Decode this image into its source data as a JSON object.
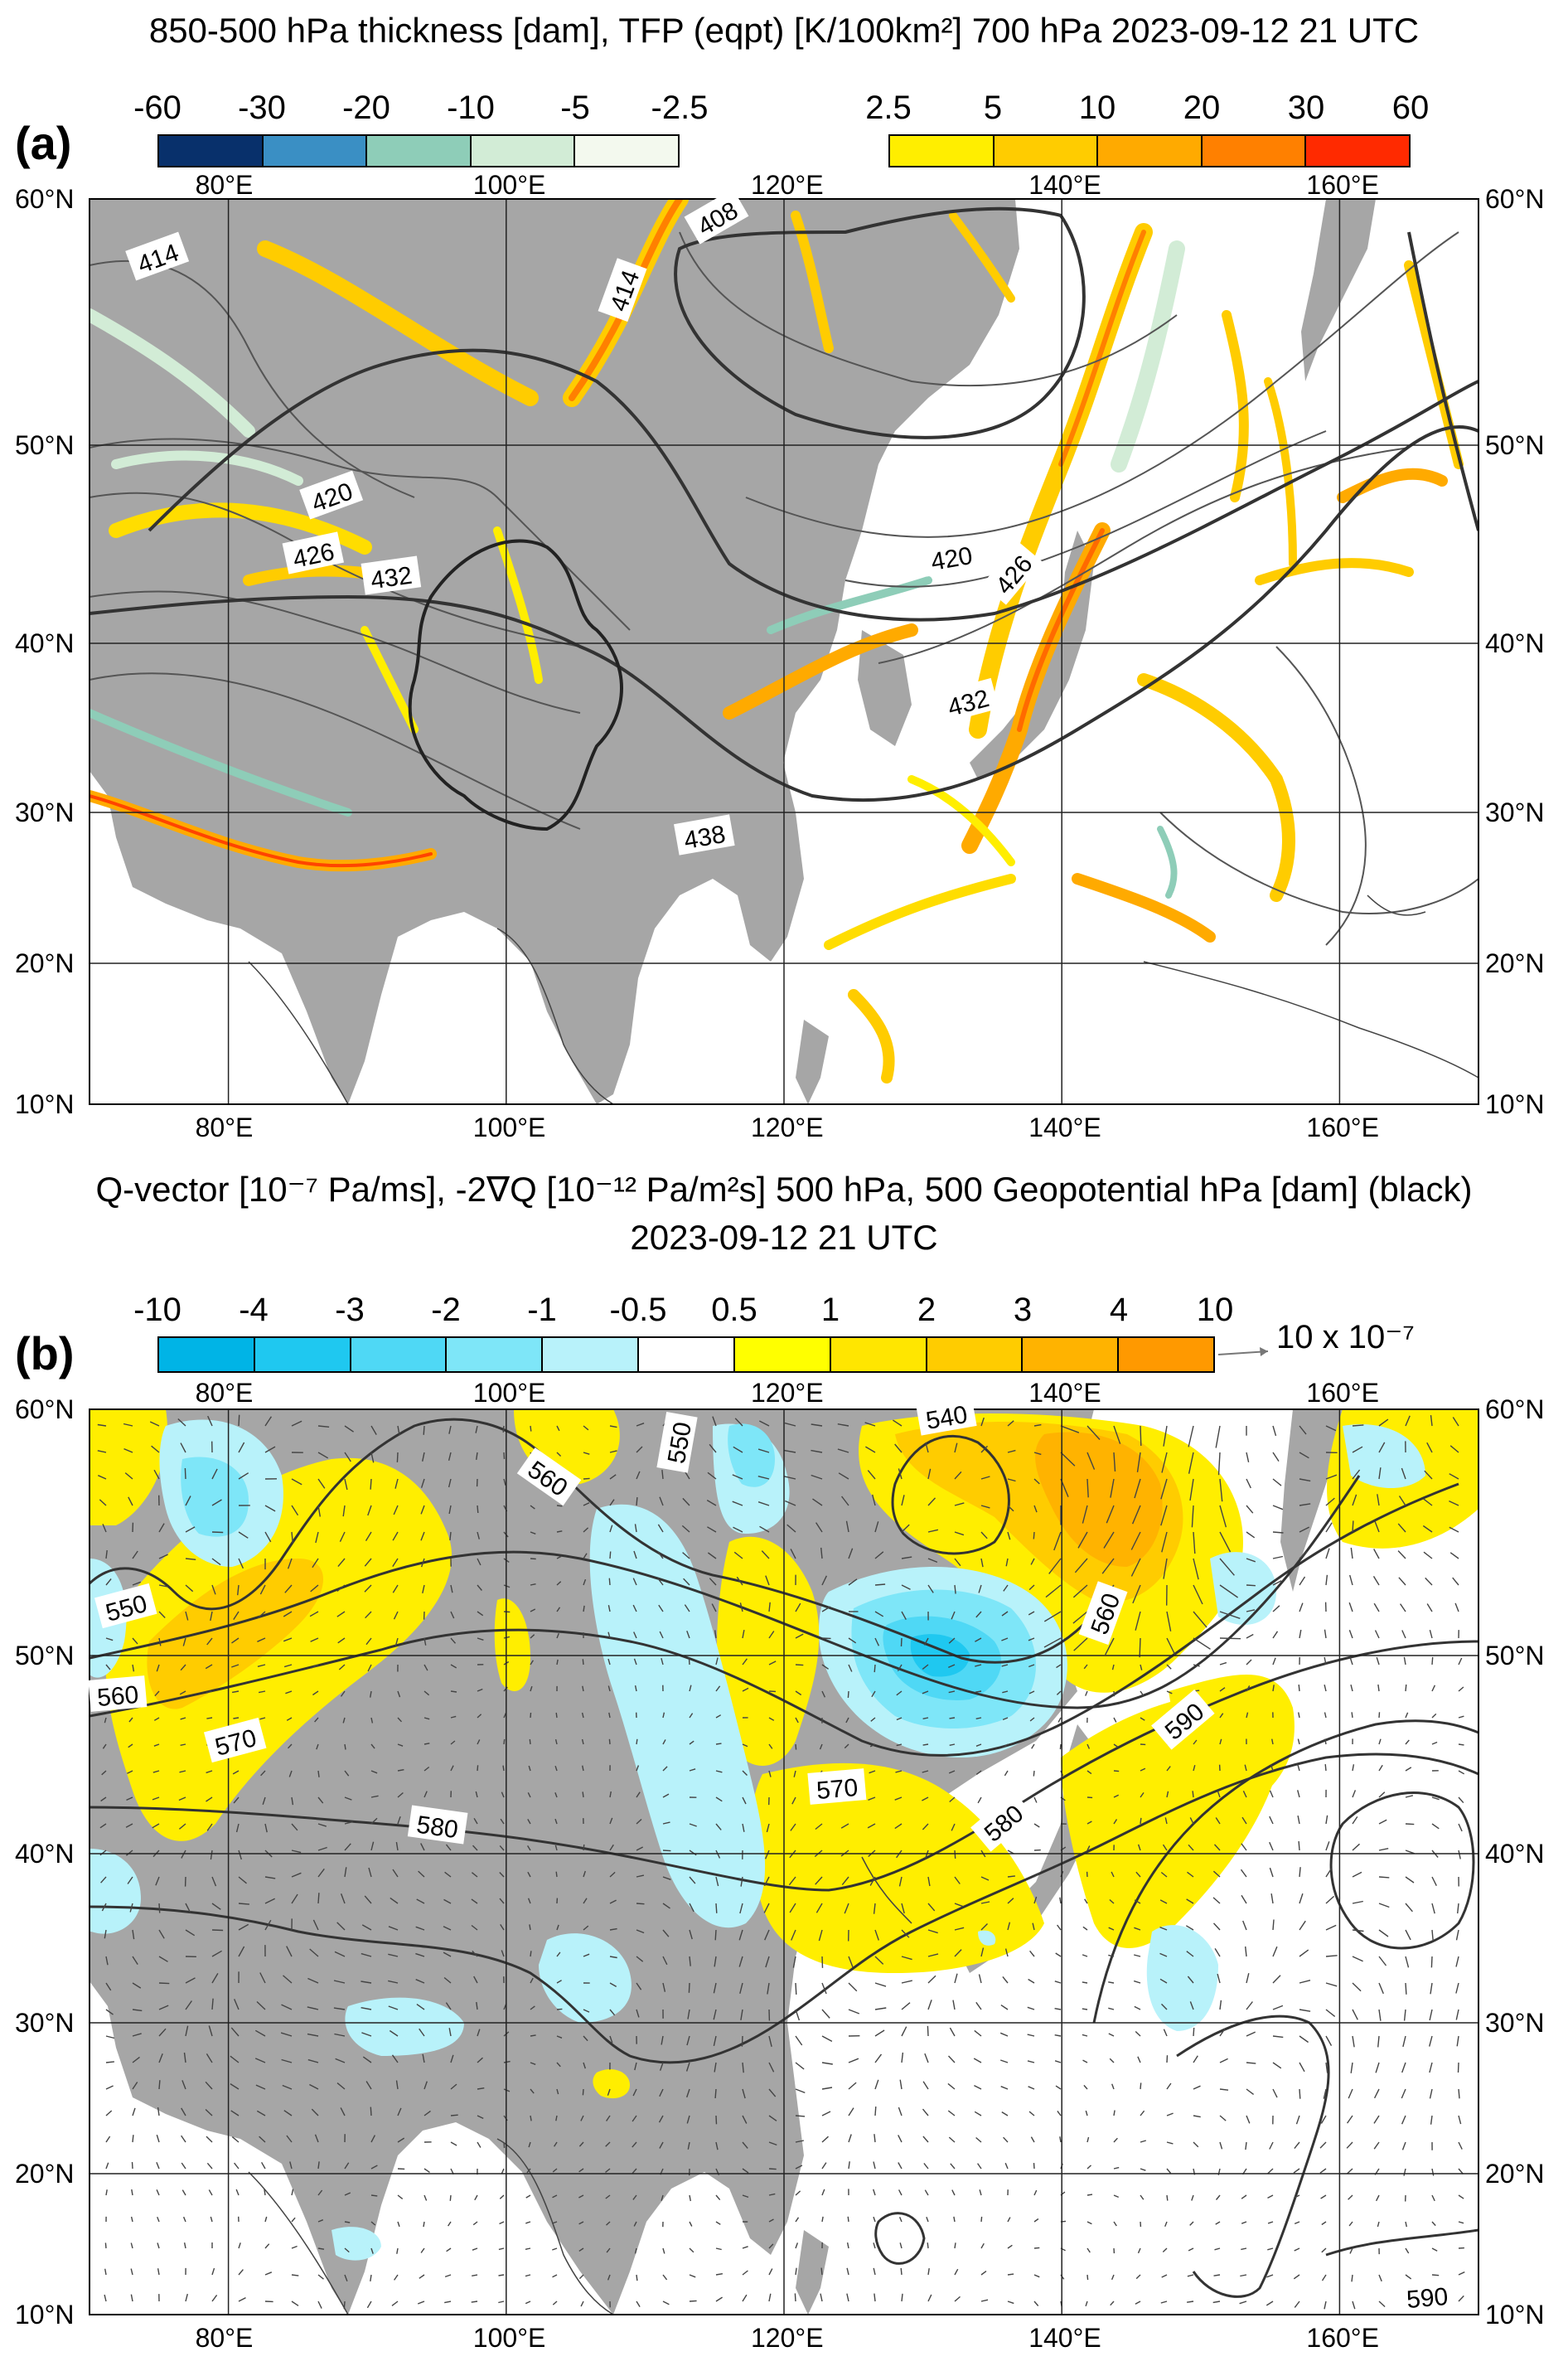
{
  "panel_a": {
    "label": "(a)",
    "title": "850-500 hPa thickness [dam], TFP (eqpt) [K/100km²] 700 hPa 2023-09-12 21 UTC",
    "colorbar_neg": {
      "ticks": [
        "-60",
        "-30",
        "-20",
        "-10",
        "-5",
        "-2.5"
      ],
      "colors": [
        "#08306b",
        "#3a8fc4",
        "#8ecdb8",
        "#d2ecd6",
        "#f3f9ee"
      ]
    },
    "colorbar_pos": {
      "ticks": [
        "2.5",
        "5",
        "10",
        "20",
        "30",
        "60"
      ],
      "colors": [
        "#ffee00",
        "#ffcc00",
        "#ffaa00",
        "#ff8000",
        "#ff2a00"
      ]
    },
    "contour_labels": [
      "414",
      "408",
      "414",
      "420",
      "426",
      "432",
      "420",
      "426",
      "432",
      "438"
    ]
  },
  "panel_b": {
    "label": "(b)",
    "title_line1": "Q-vector [10⁻⁷ Pa/ms], -2∇Q [10⁻¹² Pa/m²s] 500 hPa, 500 Geopotential hPa [dam] (black)",
    "title_line2": "2023-09-12 21 UTC",
    "colorbar": {
      "ticks": [
        "-10",
        "-4",
        "-3",
        "-2",
        "-1",
        "-0.5",
        "0.5",
        "1",
        "2",
        "3",
        "4",
        "10"
      ],
      "colors": [
        "#00b4e6",
        "#1fc8f0",
        "#4fd8f5",
        "#7ee6f8",
        "#b8f2fa",
        "#ffffff",
        "#ffff00",
        "#ffe600",
        "#ffcc00",
        "#ffb300",
        "#ff9900"
      ]
    },
    "vector_reference": "10 x 10⁻⁷",
    "contour_labels": [
      "560",
      "550",
      "540",
      "550",
      "560",
      "570",
      "580",
      "570",
      "580",
      "560",
      "590",
      "590"
    ]
  },
  "map_axes": {
    "lon_labels": [
      "80°E",
      "100°E",
      "120°E",
      "140°E",
      "160°E"
    ],
    "lat_labels": [
      "60°N",
      "50°N",
      "40°N",
      "30°N",
      "20°N",
      "10°N"
    ],
    "extent": {
      "lon": [
        70,
        170
      ],
      "lat": [
        10,
        60
      ]
    }
  }
}
